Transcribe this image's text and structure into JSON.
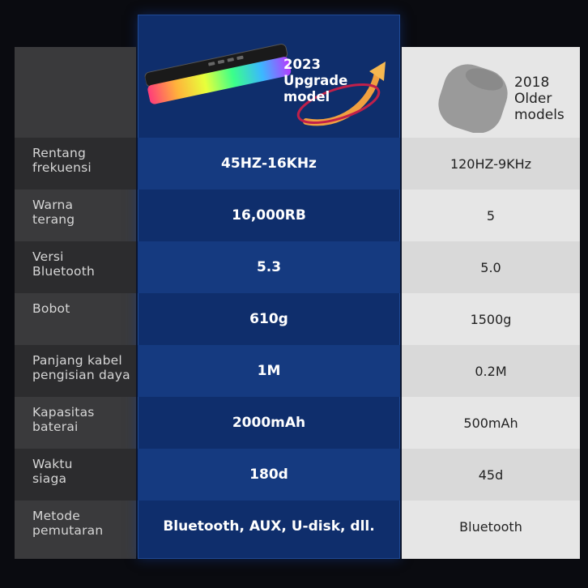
{
  "header": {
    "new_model_badge": [
      "2023",
      "Upgrade",
      "model"
    ],
    "old_model_label": [
      "2018",
      "Older",
      "models"
    ]
  },
  "rows": [
    {
      "label": [
        "Rentang",
        "frekuensi"
      ],
      "new": "45HZ-16KHz",
      "old": "120HZ-9KHz"
    },
    {
      "label": [
        "Warna",
        "terang"
      ],
      "new": "16,000RB",
      "old": "5"
    },
    {
      "label": [
        "Versi",
        "Bluetooth"
      ],
      "new": "5.3",
      "old": "5.0"
    },
    {
      "label": [
        "Bobot"
      ],
      "new": "610g",
      "old": "1500g"
    },
    {
      "label": [
        "Panjang kabel",
        "pengisian daya"
      ],
      "new": "1M",
      "old": "0.2M"
    },
    {
      "label": [
        "Kapasitas",
        "baterai"
      ],
      "new": "2000mAh",
      "old": "500mAh"
    },
    {
      "label": [
        "Waktu",
        "siaga"
      ],
      "new": "180d",
      "old": "45d"
    },
    {
      "label": [
        "Metode",
        "pemutaran"
      ],
      "new": "Bluetooth, AUX, U-disk, dll.",
      "old": "Bluetooth"
    }
  ],
  "colors": {
    "background": "#0a0b10",
    "label_column": "#3a3a3c",
    "new_column": "#0f2e6c",
    "old_column": "#e6e6e6",
    "badge_arrow": "#f0a040"
  }
}
